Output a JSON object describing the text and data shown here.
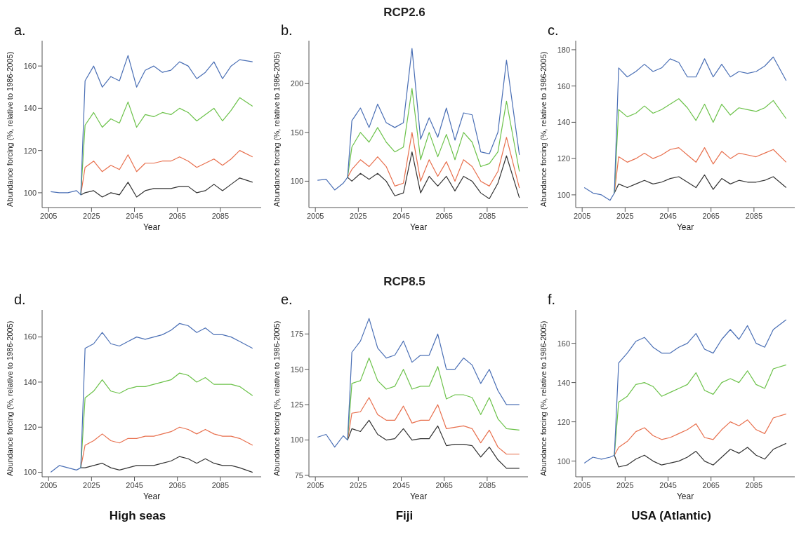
{
  "chart_data": [
    {
      "type": "line",
      "annotations": [
        "a."
      ],
      "xlabel": "Year",
      "ylabel": "Abundance forcing (%, relative to 1986-2005)",
      "x": [
        2006,
        2010,
        2014,
        2018,
        2020,
        2022,
        2026,
        2030,
        2034,
        2038,
        2042,
        2046,
        2050,
        2054,
        2058,
        2062,
        2066,
        2070,
        2074,
        2078,
        2082,
        2086,
        2090,
        2094,
        2100
      ],
      "xlim": [
        2002,
        2104
      ],
      "xticks": [
        2005,
        2025,
        2045,
        2065,
        2085
      ],
      "ylim": [
        93,
        172
      ],
      "yticks": [
        100,
        120,
        140,
        160
      ],
      "series": [
        {
          "color": "#333333",
          "values": [
            null,
            null,
            null,
            null,
            99,
            100,
            101,
            98,
            100,
            99,
            105,
            98,
            101,
            102,
            102,
            102,
            103,
            103,
            100,
            101,
            104,
            101,
            104,
            107,
            105
          ]
        },
        {
          "color": "#e8704e",
          "values": [
            null,
            null,
            null,
            null,
            99,
            112,
            115,
            110,
            113,
            111,
            118,
            110,
            114,
            114,
            115,
            115,
            117,
            115,
            112,
            114,
            116,
            113,
            116,
            120,
            117
          ]
        },
        {
          "color": "#6cc24a",
          "values": [
            null,
            null,
            null,
            null,
            99,
            132,
            138,
            131,
            135,
            133,
            143,
            131,
            137,
            136,
            138,
            137,
            140,
            138,
            134,
            137,
            140,
            134,
            139,
            145,
            141
          ]
        },
        {
          "color": "#4a6fb5",
          "values": [
            100.5,
            100,
            100,
            101,
            99,
            153,
            160,
            150,
            155,
            153,
            165,
            150,
            158,
            160,
            157,
            158,
            162,
            160,
            154,
            157,
            162,
            154,
            160,
            163,
            162
          ]
        }
      ]
    },
    {
      "type": "line",
      "title": "RCP2.6",
      "annotations": [
        "b."
      ],
      "xlabel": "Year",
      "ylabel": "Abundance forcing (%, relative to 1986-2005)",
      "x": [
        2006,
        2010,
        2014,
        2018,
        2020,
        2022,
        2026,
        2030,
        2034,
        2038,
        2042,
        2046,
        2050,
        2054,
        2058,
        2062,
        2066,
        2070,
        2074,
        2078,
        2082,
        2086,
        2090,
        2094,
        2100
      ],
      "xlim": [
        2002,
        2104
      ],
      "xticks": [
        2005,
        2025,
        2045,
        2065,
        2085
      ],
      "ylim": [
        73,
        244
      ],
      "yticks": [
        100,
        150,
        200
      ],
      "series": [
        {
          "color": "#333333",
          "values": [
            null,
            null,
            null,
            null,
            104,
            100,
            108,
            102,
            108,
            100,
            85,
            88,
            130,
            88,
            105,
            95,
            105,
            90,
            105,
            100,
            88,
            82,
            98,
            126,
            83
          ]
        },
        {
          "color": "#e8704e",
          "values": [
            null,
            null,
            null,
            null,
            104,
            112,
            122,
            115,
            125,
            115,
            95,
            98,
            150,
            100,
            122,
            105,
            120,
            100,
            122,
            115,
            100,
            95,
            110,
            145,
            93
          ]
        },
        {
          "color": "#6cc24a",
          "values": [
            null,
            null,
            null,
            null,
            104,
            135,
            150,
            140,
            155,
            140,
            130,
            135,
            195,
            122,
            150,
            125,
            148,
            122,
            150,
            140,
            115,
            118,
            130,
            182,
            110
          ]
        },
        {
          "color": "#4a6fb5",
          "values": [
            101,
            102,
            91,
            98,
            104,
            162,
            175,
            155,
            179,
            160,
            155,
            160,
            236,
            143,
            165,
            145,
            175,
            142,
            170,
            168,
            130,
            128,
            150,
            224,
            127
          ]
        }
      ]
    },
    {
      "type": "line",
      "annotations": [
        "c."
      ],
      "xlabel": "Year",
      "ylabel": "Abundance forcing (%, relative to 1986-2005)",
      "x": [
        2006,
        2010,
        2014,
        2018,
        2020,
        2022,
        2026,
        2030,
        2034,
        2038,
        2042,
        2046,
        2050,
        2054,
        2058,
        2062,
        2066,
        2070,
        2074,
        2078,
        2082,
        2086,
        2090,
        2094,
        2100
      ],
      "xlim": [
        2002,
        2104
      ],
      "xticks": [
        2005,
        2025,
        2045,
        2065,
        2085
      ],
      "ylim": [
        93,
        185
      ],
      "yticks": [
        100,
        120,
        140,
        160,
        180
      ],
      "series": [
        {
          "color": "#333333",
          "values": [
            null,
            null,
            null,
            null,
            101,
            106,
            104,
            106,
            108,
            106,
            107,
            109,
            110,
            107,
            104,
            111,
            103,
            109,
            106,
            108,
            107,
            107,
            108,
            110,
            104
          ]
        },
        {
          "color": "#e8704e",
          "values": [
            null,
            null,
            null,
            null,
            101,
            121,
            118,
            120,
            123,
            120,
            122,
            125,
            126,
            122,
            118,
            126,
            117,
            124,
            120,
            123,
            122,
            121,
            123,
            125,
            118
          ]
        },
        {
          "color": "#6cc24a",
          "values": [
            null,
            null,
            null,
            null,
            101,
            147,
            143,
            145,
            149,
            145,
            147,
            150,
            153,
            148,
            141,
            150,
            140,
            150,
            144,
            148,
            147,
            146,
            148,
            152,
            142
          ]
        },
        {
          "color": "#4a6fb5",
          "values": [
            104,
            101,
            100,
            97,
            101,
            170,
            165,
            168,
            172,
            168,
            170,
            175,
            173,
            165,
            165,
            175,
            165,
            172,
            165,
            168,
            167,
            168,
            171,
            176,
            163
          ]
        }
      ]
    },
    {
      "type": "line",
      "annotations": [
        "d.",
        "High seas"
      ],
      "xlabel": "Year",
      "ylabel": "Abundance forcing (%, relative to 1986-2005)",
      "x": [
        2006,
        2010,
        2014,
        2018,
        2020,
        2022,
        2026,
        2030,
        2034,
        2038,
        2042,
        2046,
        2050,
        2054,
        2058,
        2062,
        2066,
        2070,
        2074,
        2078,
        2082,
        2086,
        2090,
        2094,
        2100
      ],
      "xlim": [
        2002,
        2104
      ],
      "xticks": [
        2005,
        2025,
        2045,
        2065,
        2085
      ],
      "ylim": [
        98,
        172
      ],
      "yticks": [
        100,
        120,
        140,
        160
      ],
      "series": [
        {
          "color": "#333333",
          "values": [
            null,
            null,
            null,
            null,
            102,
            102,
            103,
            104,
            102,
            101,
            102,
            103,
            103,
            103,
            104,
            105,
            107,
            106,
            104,
            106,
            104,
            103,
            103,
            102,
            100
          ]
        },
        {
          "color": "#e8704e",
          "values": [
            null,
            null,
            null,
            null,
            102,
            112,
            114,
            117,
            114,
            113,
            115,
            115,
            116,
            116,
            117,
            118,
            120,
            119,
            117,
            119,
            117,
            116,
            116,
            115,
            112
          ]
        },
        {
          "color": "#6cc24a",
          "values": [
            null,
            null,
            null,
            null,
            102,
            133,
            136,
            141,
            136,
            135,
            137,
            138,
            138,
            139,
            140,
            141,
            144,
            143,
            140,
            142,
            139,
            139,
            139,
            138,
            134
          ]
        },
        {
          "color": "#4a6fb5",
          "values": [
            100,
            103,
            102,
            101,
            102,
            155,
            157,
            162,
            157,
            156,
            158,
            160,
            159,
            160,
            161,
            163,
            166,
            165,
            162,
            164,
            161,
            161,
            160,
            158,
            155
          ]
        }
      ]
    },
    {
      "type": "line",
      "title": "RCP8.5",
      "annotations": [
        "e.",
        "Fiji"
      ],
      "xlabel": "Year",
      "ylabel": "Abundance forcing (%, relative to 1986-2005)",
      "x": [
        2006,
        2010,
        2014,
        2018,
        2020,
        2022,
        2026,
        2030,
        2034,
        2038,
        2042,
        2046,
        2050,
        2054,
        2058,
        2062,
        2066,
        2070,
        2074,
        2078,
        2082,
        2086,
        2090,
        2094,
        2100
      ],
      "xlim": [
        2002,
        2104
      ],
      "xticks": [
        2005,
        2025,
        2045,
        2065,
        2085
      ],
      "ylim": [
        74,
        192
      ],
      "yticks": [
        75,
        100,
        125,
        150,
        175
      ],
      "series": [
        {
          "color": "#333333",
          "values": [
            null,
            null,
            null,
            null,
            100,
            108,
            106,
            114,
            104,
            100,
            101,
            108,
            100,
            101,
            101,
            110,
            96,
            97,
            97,
            96,
            88,
            95,
            86,
            80,
            80
          ]
        },
        {
          "color": "#e8704e",
          "values": [
            null,
            null,
            null,
            null,
            100,
            119,
            120,
            130,
            118,
            114,
            114,
            124,
            112,
            114,
            114,
            125,
            108,
            109,
            110,
            108,
            98,
            107,
            95,
            90,
            90
          ]
        },
        {
          "color": "#6cc24a",
          "values": [
            null,
            null,
            null,
            null,
            100,
            140,
            142,
            158,
            142,
            136,
            138,
            150,
            136,
            138,
            138,
            152,
            129,
            132,
            132,
            130,
            118,
            130,
            115,
            108,
            107
          ]
        },
        {
          "color": "#4a6fb5",
          "values": [
            102,
            104,
            95,
            103,
            100,
            162,
            170,
            186,
            165,
            158,
            160,
            170,
            155,
            160,
            160,
            175,
            150,
            150,
            158,
            153,
            140,
            150,
            135,
            125,
            125
          ]
        }
      ]
    },
    {
      "type": "line",
      "annotations": [
        "f.",
        "USA (Atlantic)"
      ],
      "xlabel": "Year",
      "ylabel": "Abundance forcing (%, relative to 1986-2005)",
      "x": [
        2006,
        2010,
        2014,
        2018,
        2020,
        2022,
        2026,
        2030,
        2034,
        2038,
        2042,
        2046,
        2050,
        2054,
        2058,
        2062,
        2066,
        2070,
        2074,
        2078,
        2082,
        2086,
        2090,
        2094,
        2100
      ],
      "xlim": [
        2002,
        2104
      ],
      "xticks": [
        2005,
        2025,
        2045,
        2065,
        2085
      ],
      "ylim": [
        92,
        177
      ],
      "yticks": [
        100,
        120,
        140,
        160
      ],
      "series": [
        {
          "color": "#333333",
          "values": [
            null,
            null,
            null,
            null,
            103,
            97,
            98,
            101,
            103,
            100,
            98,
            99,
            100,
            102,
            105,
            100,
            98,
            102,
            106,
            104,
            107,
            103,
            101,
            106,
            109
          ]
        },
        {
          "color": "#e8704e",
          "values": [
            null,
            null,
            null,
            null,
            103,
            107,
            110,
            115,
            117,
            113,
            111,
            112,
            114,
            116,
            119,
            112,
            111,
            116,
            120,
            118,
            121,
            116,
            114,
            122,
            124
          ]
        },
        {
          "color": "#6cc24a",
          "values": [
            null,
            null,
            null,
            null,
            103,
            130,
            133,
            139,
            140,
            138,
            133,
            135,
            137,
            139,
            145,
            136,
            134,
            140,
            142,
            140,
            146,
            139,
            137,
            147,
            149
          ]
        },
        {
          "color": "#4a6fb5",
          "values": [
            99,
            102,
            101,
            102,
            103,
            150,
            155,
            161,
            163,
            158,
            155,
            155,
            158,
            160,
            165,
            157,
            155,
            162,
            167,
            162,
            169,
            160,
            158,
            167,
            172
          ]
        }
      ]
    }
  ]
}
